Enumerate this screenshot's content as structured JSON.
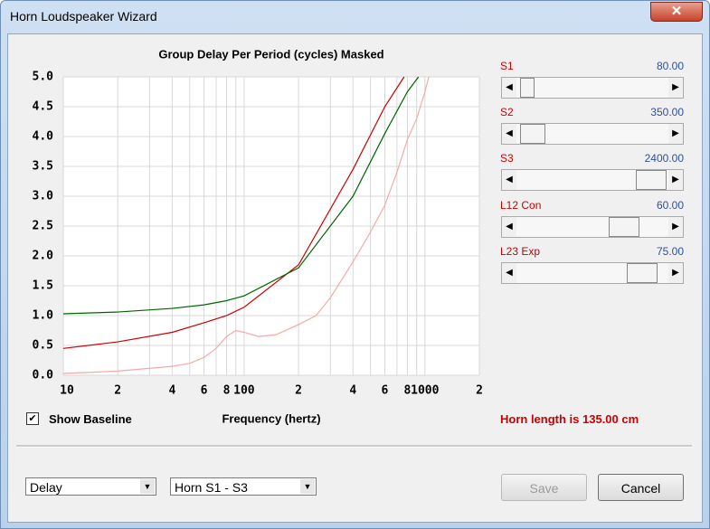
{
  "window": {
    "title": "Horn Loudspeaker Wizard",
    "sliders": [
      {
        "label": "S1",
        "value": "80.00"
      },
      {
        "label": "S2",
        "value": "350.00"
      },
      {
        "label": "S3",
        "value": "2400.00"
      },
      {
        "label": "L12  Con",
        "value": "60.00"
      },
      {
        "label": "L23  Exp",
        "value": "75.00"
      }
    ],
    "checkbox": {
      "label": "Show Baseline",
      "checked": true
    },
    "status": "Horn length is 135.00 cm",
    "combo_left": "Delay",
    "combo_right": "Horn S1 - S3",
    "save_button": "Save",
    "cancel_button": "Cancel"
  },
  "chart_data": {
    "type": "line",
    "title": "Group Delay Per Period (cycles)   Masked",
    "x_label": "Frequency (hertz)",
    "x_log": true,
    "xlim": [
      10,
      2000
    ],
    "ylim": [
      0,
      5
    ],
    "grid": true,
    "xticks": [
      10,
      {
        "value": 20,
        "label": "2"
      },
      {
        "value": 40,
        "label": "4"
      },
      {
        "value": 60,
        "label": "6"
      },
      {
        "value": 80,
        "label": "8"
      },
      100,
      {
        "value": 200,
        "label": "2"
      },
      {
        "value": 400,
        "label": "4"
      },
      {
        "value": 600,
        "label": "6"
      },
      {
        "value": 800,
        "label": "8"
      },
      1000,
      {
        "value": 2000,
        "label": "2"
      }
    ],
    "xminor": [
      30,
      50,
      70,
      90,
      300,
      500,
      700,
      900
    ],
    "yticks": [
      {
        "value": 0,
        "label": "0.0"
      },
      {
        "value": 0.5,
        "label": "0.5"
      },
      {
        "value": 1,
        "label": "1.0"
      },
      {
        "value": 1.5,
        "label": "1.5"
      },
      {
        "value": 2,
        "label": "2.0"
      },
      {
        "value": 2.5,
        "label": "2.5"
      },
      {
        "value": 3,
        "label": "3.0"
      },
      {
        "value": 3.5,
        "label": "3.5"
      },
      {
        "value": 4,
        "label": "4.0"
      },
      {
        "value": 4.5,
        "label": "4.5"
      },
      {
        "value": 5,
        "label": "5.0"
      }
    ],
    "series": [
      {
        "color": "#f4a9a9",
        "x": [
          10,
          20,
          40,
          50,
          60,
          70,
          80,
          90,
          100,
          120,
          150,
          200,
          250,
          300,
          400,
          500,
          600,
          700,
          800,
          900,
          1000,
          1050
        ],
        "values": [
          0.03,
          0.07,
          0.15,
          0.2,
          0.3,
          0.45,
          0.65,
          0.75,
          0.72,
          0.65,
          0.68,
          0.85,
          1.0,
          1.3,
          1.9,
          2.4,
          2.85,
          3.4,
          3.95,
          4.3,
          4.75,
          5.0
        ]
      },
      {
        "color": "#cc0000",
        "x": [
          10,
          20,
          40,
          60,
          80,
          100,
          200,
          400,
          600,
          767
        ],
        "values": [
          0.45,
          0.56,
          0.72,
          0.88,
          1.0,
          1.14,
          1.85,
          3.45,
          4.5,
          5.0
        ]
      },
      {
        "color": "#006400",
        "x": [
          10,
          20,
          40,
          60,
          80,
          100,
          200,
          400,
          600,
          800,
          922
        ],
        "values": [
          1.03,
          1.06,
          1.12,
          1.18,
          1.25,
          1.33,
          1.8,
          3.0,
          4.05,
          4.75,
          5.0
        ]
      }
    ]
  }
}
